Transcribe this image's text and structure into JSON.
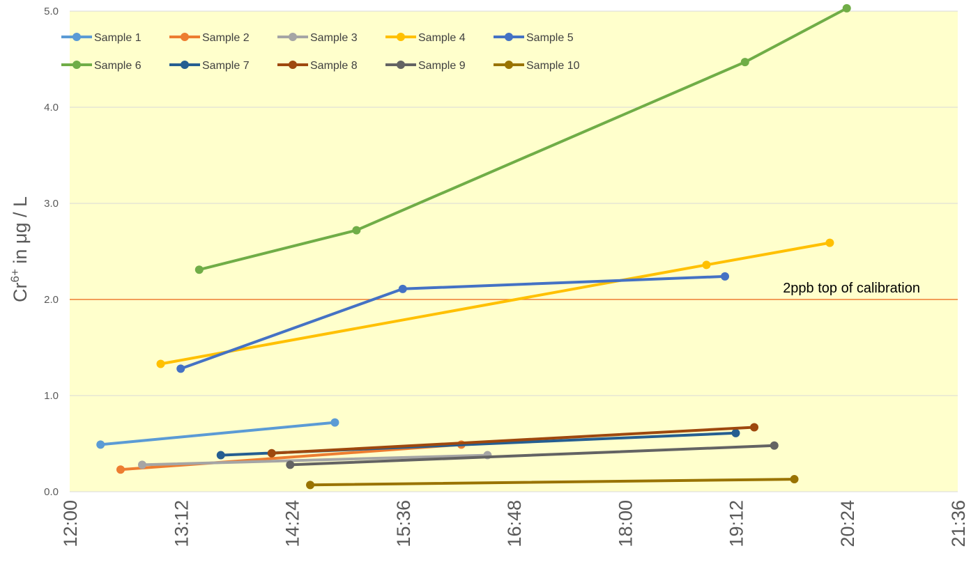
{
  "chart_data": {
    "type": "line",
    "ylabel_parts": [
      "Cr",
      "6+",
      " in μg / L"
    ],
    "ylim": [
      0,
      5
    ],
    "yticks": [
      0,
      1,
      2,
      3,
      4,
      5
    ],
    "ytick_labels": [
      "0.0",
      "1.0",
      "2.0",
      "3.0",
      "4.0",
      "5.0"
    ],
    "xlim": [
      "12:00",
      "21:36"
    ],
    "xtick_labels": [
      "12:00",
      "13:12",
      "14:24",
      "15:36",
      "16:48",
      "18:00",
      "19:12",
      "20:24",
      "21:36"
    ],
    "legend_position": "top-left",
    "grid": true,
    "plot_background": "#FFFFCC",
    "reference_line": {
      "y": 2.0,
      "label": "2ppb top of calibration",
      "color": "#ED7D31"
    },
    "series": [
      {
        "name": "Sample 1",
        "color": "#5B9BD5",
        "points": [
          [
            "12:20",
            0.49
          ],
          [
            "14:52",
            0.72
          ]
        ]
      },
      {
        "name": "Sample 2",
        "color": "#ED7D31",
        "points": [
          [
            "12:33",
            0.23
          ],
          [
            "16:14",
            0.49
          ]
        ]
      },
      {
        "name": "Sample 3",
        "color": "#A5A5A5",
        "points": [
          [
            "12:47",
            0.28
          ],
          [
            "16:31",
            0.38
          ]
        ]
      },
      {
        "name": "Sample 4",
        "color": "#FFC000",
        "points": [
          [
            "12:59",
            1.33
          ],
          [
            "18:53",
            2.36
          ],
          [
            "20:13",
            2.59
          ]
        ]
      },
      {
        "name": "Sample 5",
        "color": "#4472C4",
        "points": [
          [
            "13:12",
            1.28
          ],
          [
            "15:36",
            2.11
          ],
          [
            "19:05",
            2.24
          ]
        ]
      },
      {
        "name": "Sample 6",
        "color": "#70AD47",
        "points": [
          [
            "13:24",
            2.31
          ],
          [
            "15:06",
            2.72
          ],
          [
            "19:18",
            4.47
          ],
          [
            "20:24",
            5.03
          ]
        ]
      },
      {
        "name": "Sample 7",
        "color": "#255E91",
        "points": [
          [
            "13:38",
            0.38
          ],
          [
            "19:12",
            0.61
          ]
        ]
      },
      {
        "name": "Sample 8",
        "color": "#9E480E",
        "points": [
          [
            "14:11",
            0.4
          ],
          [
            "19:24",
            0.67
          ]
        ]
      },
      {
        "name": "Sample 9",
        "color": "#636363",
        "points": [
          [
            "14:23",
            0.28
          ],
          [
            "19:37",
            0.48
          ]
        ]
      },
      {
        "name": "Sample 10",
        "color": "#997300",
        "points": [
          [
            "14:36",
            0.07
          ],
          [
            "19:50",
            0.13
          ]
        ]
      }
    ]
  }
}
